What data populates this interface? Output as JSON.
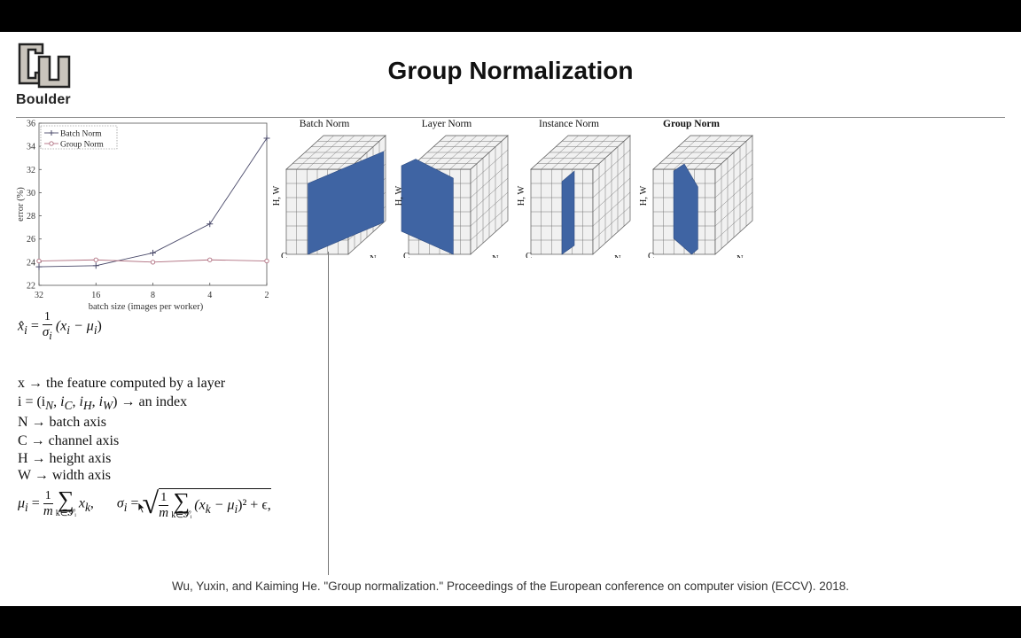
{
  "slide": {
    "logo_text": "Boulder",
    "title": "Group Normalization",
    "citation": "Wu, Yuxin, and Kaiming He. \"Group normalization.\" Proceedings of the European conference on computer vision (ECCV). 2018."
  },
  "cubes": [
    {
      "label": "Batch Norm",
      "bold": false
    },
    {
      "label": "Layer Norm",
      "bold": false
    },
    {
      "label": "Instance Norm",
      "bold": false
    },
    {
      "label": "Group Norm",
      "bold": true
    }
  ],
  "cube_axes": {
    "hw": "H, W",
    "c": "C",
    "n": "N"
  },
  "equations": {
    "xhat_lhs": "x̂",
    "xhat_sub": "i",
    "xhat_num": "1",
    "xhat_den": "σ",
    "xhat_den_sub": "i",
    "xhat_rhs": "(x",
    "xhat_rhs2": " − μ",
    "xhat_rhs3": ")",
    "def_x": "x → the feature computed by a layer",
    "def_i": "i = (i",
    "def_i_subs": [
      "N",
      "C",
      "H",
      "W"
    ],
    "def_i_tail": ") → an index",
    "def_n": "N → batch axis",
    "def_c": "C → channel axis",
    "def_h": "H → height axis",
    "def_w": "W → width axis",
    "mu_lhs": "μ",
    "mu_sub": "i",
    "mu_eq": " = ",
    "frac_num": "1",
    "frac_den": "m",
    "sum_symbol": "∑",
    "sum_sub": "k∈𝒮ᵢ",
    "mu_rhs": "x",
    "mu_rhs_sub": "k",
    "mu_tail": ",",
    "sigma_lhs": "σ",
    "sigma_sub": "i",
    "sigma_body": "(x",
    "sigma_body2": " − μ",
    "sigma_body3": ")² + ϵ,"
  },
  "chart_data": {
    "type": "line",
    "xlabel": "batch size (images per worker)",
    "ylabel": "error (%)",
    "categories": [
      "32",
      "16",
      "8",
      "4",
      "2"
    ],
    "ylim": [
      22,
      36
    ],
    "yticks": [
      22,
      24,
      26,
      28,
      30,
      32,
      34,
      36
    ],
    "legend_position": "top-left",
    "series": [
      {
        "name": "Batch Norm",
        "marker": "+",
        "values": [
          23.6,
          23.7,
          24.8,
          27.3,
          34.7
        ]
      },
      {
        "name": "Group Norm",
        "marker": "o",
        "values": [
          24.1,
          24.2,
          24.0,
          24.2,
          24.1
        ]
      }
    ],
    "colors": {
      "batch": "#4a4a6a",
      "group": "#b07080"
    }
  },
  "colors": {
    "highlight": "#3f64a3",
    "cube_face": "#f1f1f1",
    "title": "#111111"
  }
}
